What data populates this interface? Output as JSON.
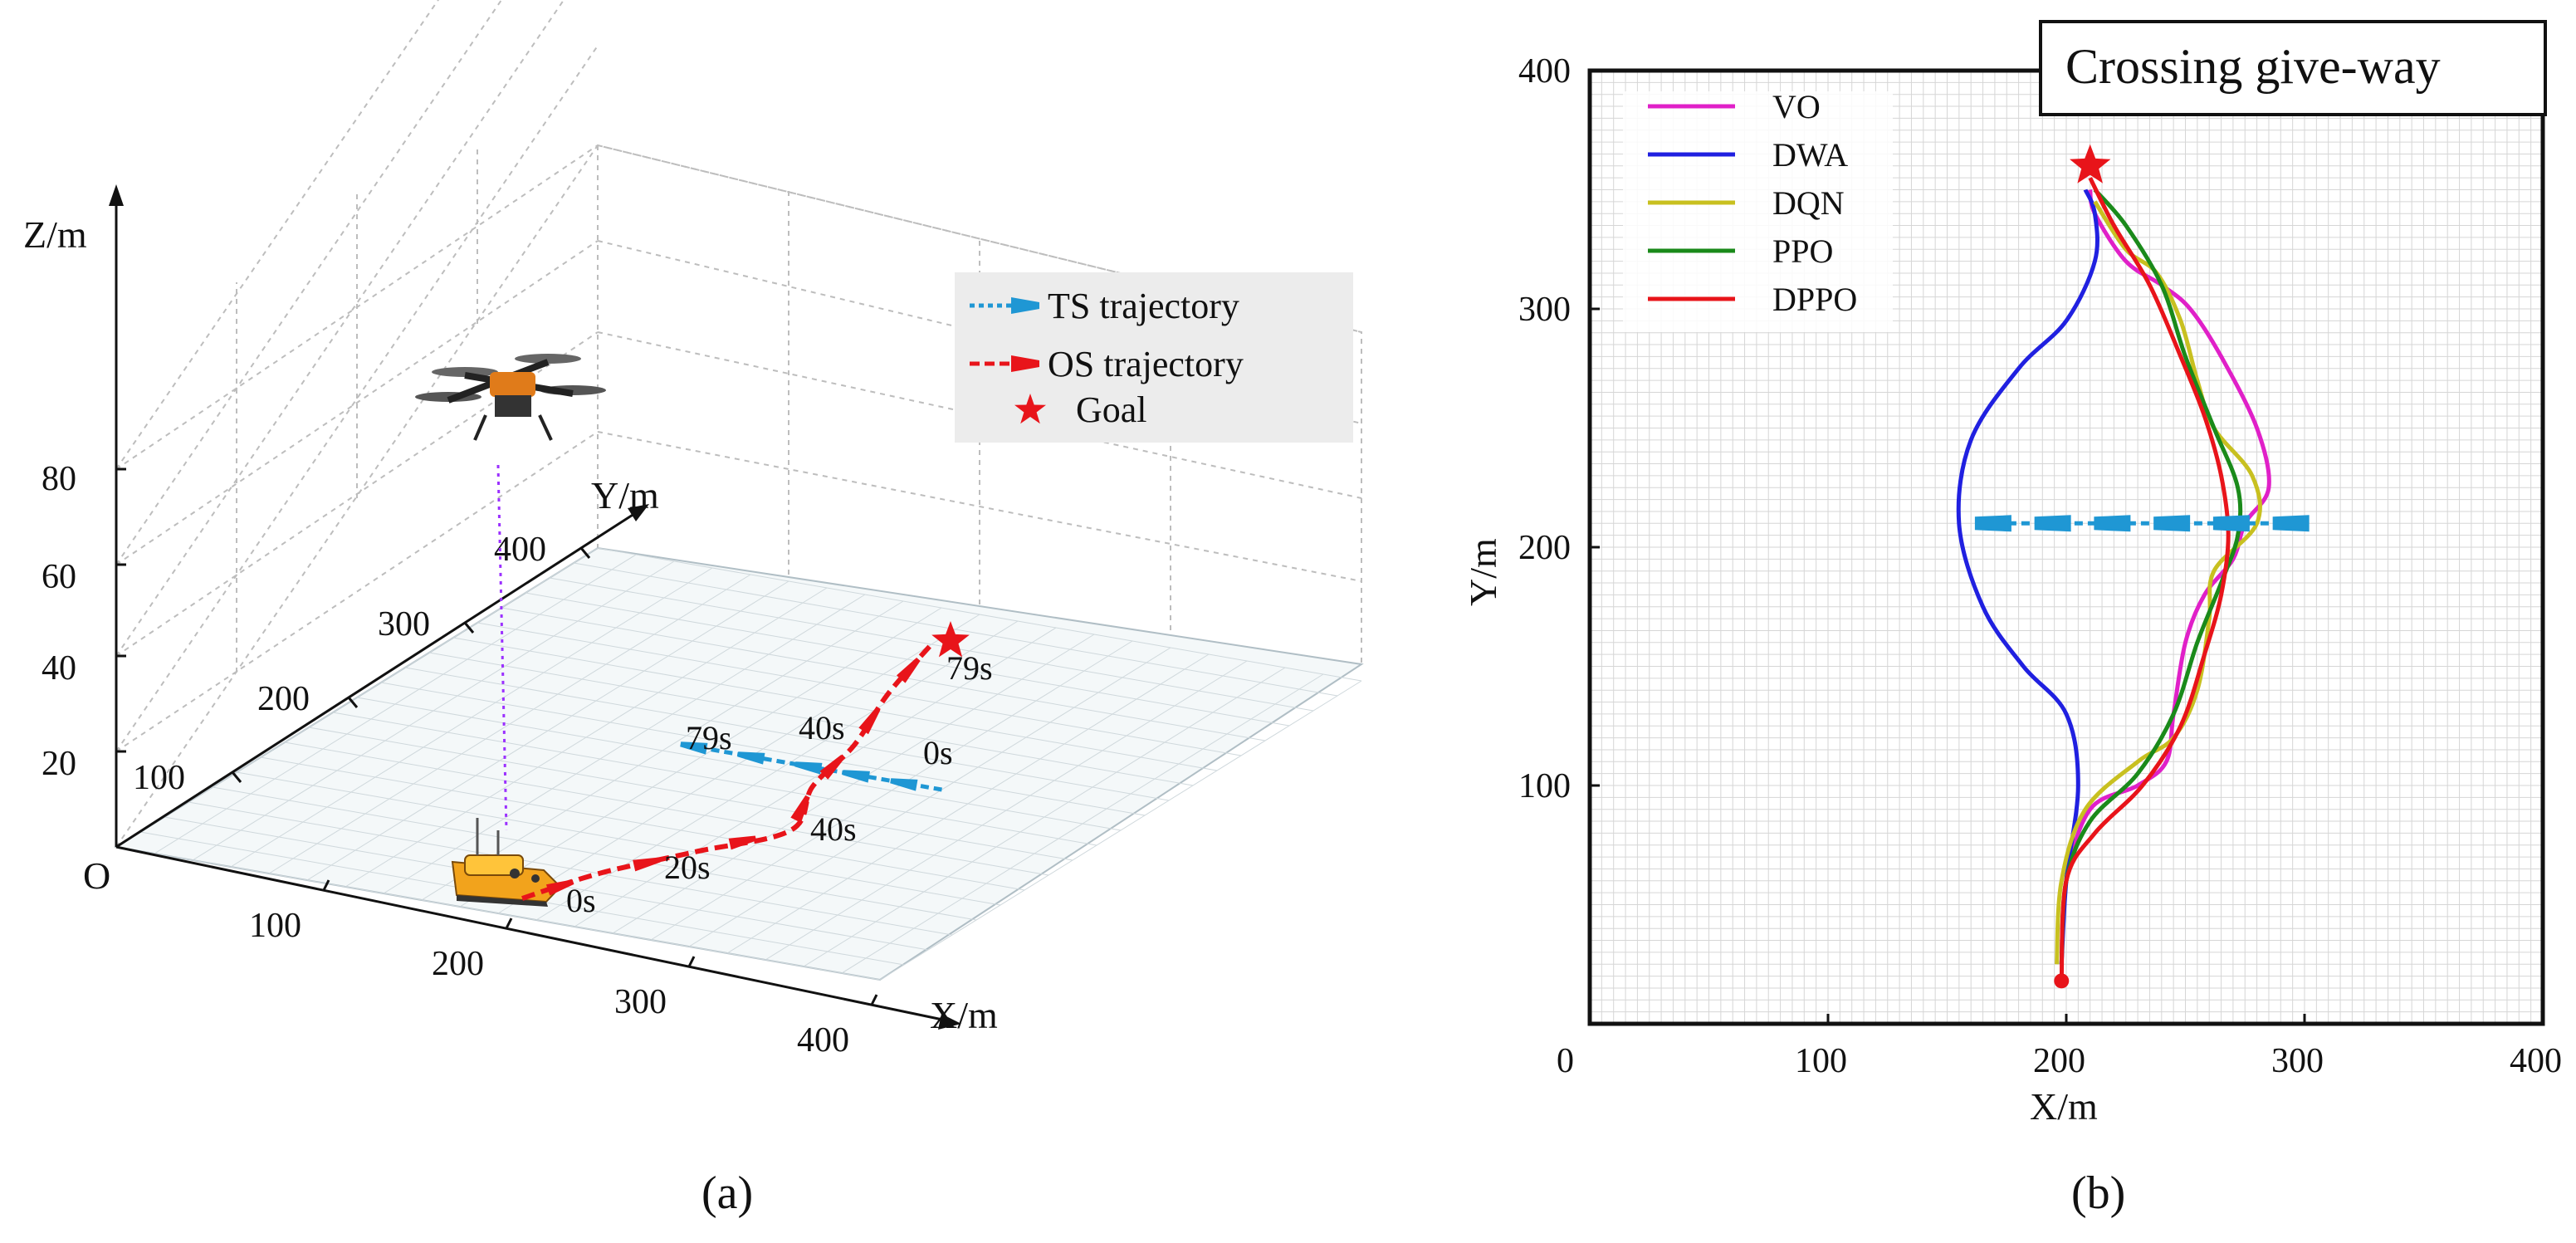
{
  "figure": {
    "caption_a": "(a)",
    "caption_b": "(b)"
  },
  "chart_data": [
    {
      "type": "line",
      "panel": "a",
      "title": "",
      "xlabel": "X/m",
      "ylabel": "Y/m",
      "zlabel": "Z/m",
      "origin_label": "O",
      "x_ticks": [
        "100",
        "200",
        "300",
        "400"
      ],
      "y_ticks": [
        "100",
        "200",
        "300",
        "400"
      ],
      "z_ticks": [
        "20",
        "40",
        "60",
        "80"
      ],
      "legend": [
        {
          "label": "TS  trajectory",
          "color": "#1f97d4"
        },
        {
          "label": "OS  trajectory",
          "color": "#e8141a"
        },
        {
          "label": "Goal",
          "color": "#e8141a"
        }
      ],
      "annotations": {
        "ts_start": "0s",
        "ts_mid": "40s",
        "ts_end": "79s",
        "os_start": "0s",
        "os_20": "20s",
        "os_40": "40s",
        "os_end": "79s"
      },
      "series": [
        {
          "name": "TS trajectory",
          "x": [
            300,
            280,
            255,
            230,
            200,
            170
          ],
          "y": [
            210,
            210,
            210,
            210,
            210,
            210
          ]
        },
        {
          "name": "OS trajectory",
          "x": [
            200,
            215,
            240,
            265,
            245,
            235,
            215,
            200
          ],
          "y": [
            20,
            60,
            100,
            140,
            190,
            240,
            300,
            360
          ]
        }
      ],
      "goal": {
        "x": 210,
        "y": 360
      }
    },
    {
      "type": "line",
      "panel": "b",
      "title": "Crossing give-way",
      "xlabel": "X/m",
      "ylabel": "Y/m",
      "xlim": [
        0,
        400
      ],
      "ylim": [
        0,
        400
      ],
      "x_ticks": [
        0,
        100,
        200,
        300,
        400
      ],
      "y_ticks": [
        0,
        100,
        200,
        300,
        400
      ],
      "grid": true,
      "legend_position": "top-left",
      "start": {
        "x": 198,
        "y": 18
      },
      "goal": {
        "x": 210,
        "y": 360
      },
      "target_ship": {
        "x": [
          170,
          195,
          220,
          245,
          270,
          295
        ],
        "y": [
          210,
          210,
          210,
          210,
          210,
          210
        ]
      },
      "series": [
        {
          "name": "VO",
          "color": "#e020c8",
          "x": [
            198,
            200,
            210,
            230,
            242,
            245,
            250,
            258,
            270,
            275,
            285,
            280,
            265,
            252,
            240,
            225,
            212,
            210
          ],
          "y": [
            25,
            60,
            90,
            100,
            110,
            130,
            160,
            180,
            195,
            210,
            225,
            250,
            280,
            300,
            310,
            320,
            340,
            350
          ]
        },
        {
          "name": "DWA",
          "color": "#2020e0",
          "x": [
            198,
            200,
            205,
            200,
            182,
            165,
            155,
            160,
            180,
            200,
            212,
            212,
            208
          ],
          "y": [
            25,
            60,
            100,
            130,
            150,
            175,
            210,
            245,
            275,
            295,
            320,
            340,
            350
          ]
        },
        {
          "name": "DQN",
          "color": "#c8c020",
          "x": [
            196,
            198,
            208,
            230,
            245,
            255,
            260,
            262,
            280,
            278,
            262,
            255,
            248,
            238,
            225,
            212
          ],
          "y": [
            25,
            60,
            90,
            110,
            120,
            140,
            170,
            190,
            210,
            230,
            250,
            270,
            295,
            315,
            325,
            345
          ]
        },
        {
          "name": "PPO",
          "color": "#1a8a1a",
          "x": [
            198,
            200,
            210,
            230,
            245,
            255,
            265,
            272,
            272,
            262,
            250,
            240,
            225,
            212
          ],
          "y": [
            25,
            60,
            85,
            105,
            130,
            160,
            185,
            205,
            225,
            250,
            280,
            310,
            335,
            350
          ]
        },
        {
          "name": "DPPO",
          "color": "#e8141a",
          "x": [
            198,
            200,
            212,
            232,
            248,
            258,
            265,
            268,
            265,
            258,
            248,
            235,
            220,
            210
          ],
          "y": [
            18,
            60,
            80,
            100,
            125,
            155,
            180,
            205,
            230,
            255,
            280,
            310,
            335,
            355
          ]
        }
      ]
    }
  ]
}
